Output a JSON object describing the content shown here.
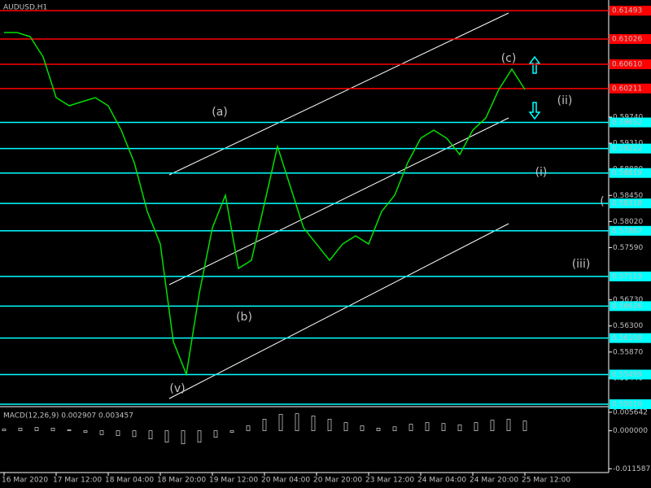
{
  "chart_data": [
    {
      "type": "line",
      "title": "AUDUSD,H1",
      "color": "#00e000",
      "categories": [
        "16 Mar 2020",
        null,
        null,
        null,
        "17 Mar 12:00",
        null,
        null,
        null,
        "18 Mar 04:00",
        null,
        null,
        null,
        "18 Mar 20:00",
        null,
        null,
        null,
        "19 Mar 12:00",
        null,
        null,
        null,
        "20 Mar 04:00",
        null,
        null,
        null,
        "20 Mar 20:00",
        null,
        null,
        null,
        "23 Mar 12:00",
        null,
        null,
        null,
        "24 Mar 04:00",
        null,
        null,
        null,
        "24 Mar 20:00",
        null,
        null,
        null,
        "25 Mar 12:00"
      ],
      "values": [
        0.61133,
        0.61133,
        0.61066,
        0.60731,
        0.60061,
        0.59927,
        0.59994,
        0.60061,
        0.59927,
        0.59525,
        0.58989,
        0.58185,
        0.57649,
        0.56041,
        0.55505,
        0.56845,
        0.57917,
        0.58453,
        0.57247,
        0.57381,
        0.58319,
        0.59257,
        0.58587,
        0.57917,
        0.57649,
        0.57381,
        0.57649,
        0.57783,
        0.57649,
        0.58185,
        0.58453,
        0.58989,
        0.59391,
        0.59525,
        0.59391,
        0.59123,
        0.59525,
        0.59726,
        0.60195,
        0.6053,
        0.60195
      ],
      "ylim": [
        0.5497,
        0.61669
      ],
      "yticks": [
        {
          "value": 0.5974,
          "label": "0.59740"
        },
        {
          "value": 0.5931,
          "label": "0.59310"
        },
        {
          "value": 0.5888,
          "label": "0.58880"
        },
        {
          "value": 0.5845,
          "label": "0.58450"
        },
        {
          "value": 0.5802,
          "label": "0.58020"
        },
        {
          "value": 0.5759,
          "label": "0.57590"
        },
        {
          "value": 0.5673,
          "label": "0.56730"
        },
        {
          "value": 0.563,
          "label": "0.56300"
        },
        {
          "value": 0.5587,
          "label": "0.55870"
        },
        {
          "value": 0.5544,
          "label": "0.55440"
        }
      ],
      "levels": [
        {
          "value": 0.61493,
          "label": "0.61493",
          "color": "#ff0000"
        },
        {
          "value": 0.61026,
          "label": "0.61026",
          "color": "#ff0000"
        },
        {
          "value": 0.6061,
          "label": "0.60610",
          "color": "#ff0000"
        },
        {
          "value": 0.60211,
          "label": "0.60211",
          "color": "#ff0000"
        },
        {
          "value": 0.59652,
          "label": "0.59652",
          "color": "#00ffff"
        },
        {
          "value": 0.59222,
          "label": "0.59222",
          "color": "#00ffff"
        },
        {
          "value": 0.58819,
          "label": "0.58819",
          "color": "#00ffff"
        },
        {
          "value": 0.58318,
          "label": "0.58318",
          "color": "#00ffff"
        },
        {
          "value": 0.57867,
          "label": "0.57867",
          "color": "#00ffff"
        },
        {
          "value": 0.57115,
          "label": "0.57115",
          "color": "#00ffff"
        },
        {
          "value": 0.56626,
          "label": "0.56626",
          "color": "#00ffff"
        },
        {
          "value": 0.561,
          "label": "0.56100",
          "color": "#00ffff"
        },
        {
          "value": 0.55499,
          "label": "0.55499",
          "color": "#00ffff"
        },
        {
          "value": 0.5501,
          "label": "0.55010",
          "color": "#00ffff"
        }
      ],
      "annotations": [
        {
          "text": "(a)",
          "color": "#ffd700"
        },
        {
          "text": "(b)",
          "color": "#ffd700"
        },
        {
          "text": "(c)",
          "color": "#ffd700"
        },
        {
          "text": "(v)",
          "color": "#ffffff"
        },
        {
          "text": "(ii)",
          "color": "#ffffff"
        },
        {
          "text": "(i)",
          "color": "#ffffff"
        },
        {
          "text": "(iii)",
          "color": "#ffffff"
        },
        {
          "text": "(",
          "color": "#ffffff"
        }
      ]
    },
    {
      "type": "histogram",
      "title": "MACD(12,26,9) 0.002907 0.003457",
      "color": "#ffffff",
      "values": [
        0.0005,
        0.0008,
        0.001,
        0.0008,
        0.0003,
        -0.0005,
        -0.0012,
        -0.0015,
        -0.0018,
        -0.0025,
        -0.0035,
        -0.004,
        -0.0035,
        -0.002,
        -0.0005,
        0.0015,
        0.0035,
        0.005,
        0.0052,
        0.0045,
        0.0035,
        0.0025,
        0.0015,
        0.0008,
        0.0012,
        0.002,
        0.0025,
        0.0022,
        0.0018,
        0.0025,
        0.0032,
        0.0035,
        0.003
      ],
      "ylim": [
        -0.0125,
        0.0066
      ],
      "yticks": [
        {
          "value": 0.005642,
          "label": "0.005642"
        },
        {
          "value": 0,
          "label": "0.000000"
        },
        {
          "value": -0.011587,
          "label": "-0.011587"
        }
      ]
    }
  ]
}
